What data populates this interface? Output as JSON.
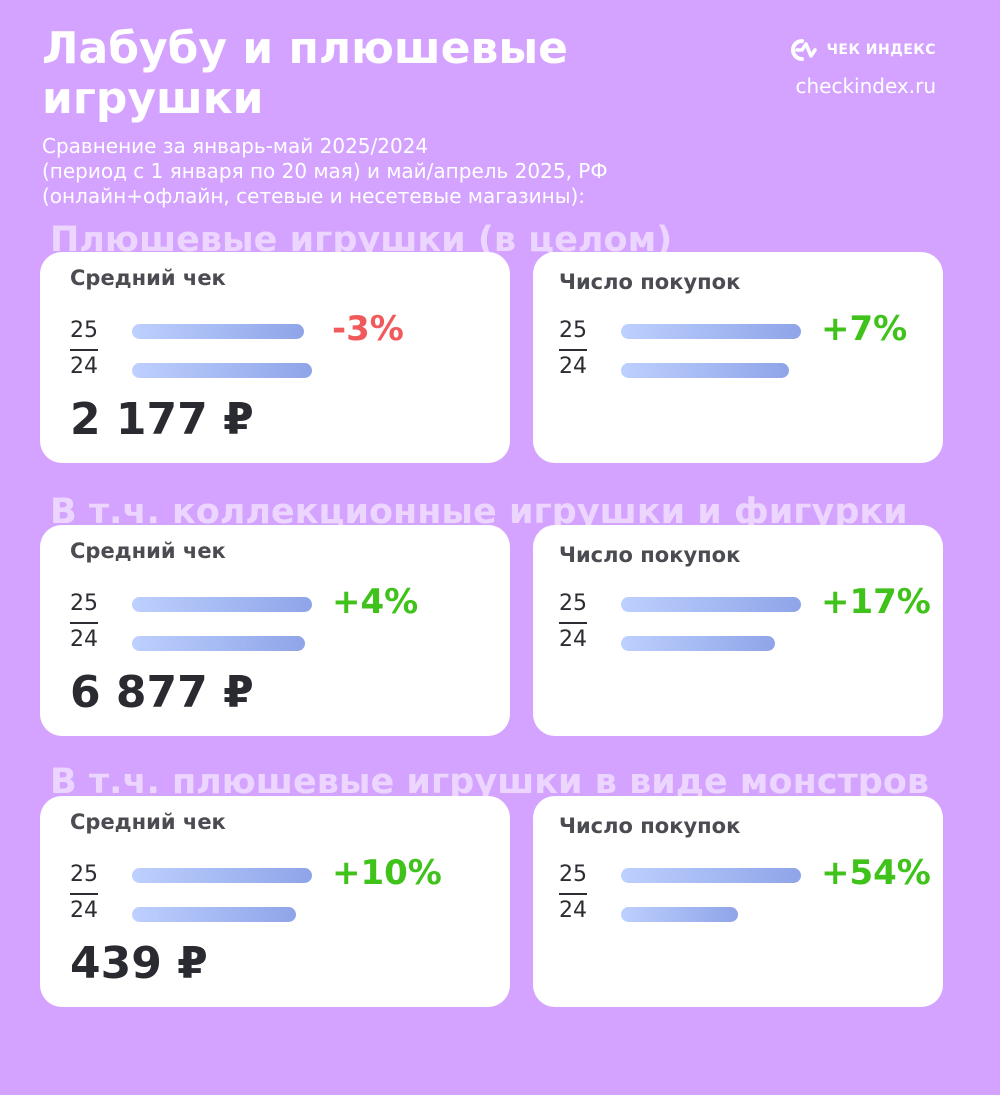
{
  "header": {
    "title": "Лабубу и плюшевые игрушки",
    "subtitle_lines": [
      "Сравнение за январь-май 2025/2024",
      "(период с 1 января по 20 мая) и май/апрель 2025, РФ",
      "(онлайн+офлайн, сетевые и несетевые магазины):"
    ]
  },
  "brand": {
    "name": "ЧЕК ИНДЕКС",
    "url": "checkindex.ru",
    "logo_icon": "checkindex-logo-icon"
  },
  "colors": {
    "background": "#d4a3ff",
    "negative": "#f05a5a",
    "positive": "#3fc21a",
    "bar_start": "#bdd0ff",
    "bar_end": "#8fa4e8"
  },
  "chart_data": [
    {
      "type": "bar",
      "title": "Плюшевые игрушки (в целом)",
      "metric": "Средний чек",
      "categories": [
        "25",
        "24"
      ],
      "values": [
        0.97,
        1.0
      ],
      "change": "-3%",
      "value_label": "2 177 ₽"
    },
    {
      "type": "bar",
      "title": "Плюшевые игрушки (в целом)",
      "metric": "Число покупок",
      "categories": [
        "25",
        "24"
      ],
      "values": [
        1.07,
        1.0
      ],
      "change": "+7%"
    },
    {
      "type": "bar",
      "title": "В т.ч. коллекционные игрушки и фигурки",
      "metric": "Средний чек",
      "categories": [
        "25",
        "24"
      ],
      "values": [
        1.04,
        1.0
      ],
      "change": "+4%",
      "value_label": "6 877 ₽"
    },
    {
      "type": "bar",
      "title": "В т.ч. коллекционные игрушки и фигурки",
      "metric": "Число покупок",
      "categories": [
        "25",
        "24"
      ],
      "values": [
        1.17,
        1.0
      ],
      "change": "+17%"
    },
    {
      "type": "bar",
      "title": "В т.ч. плюшевые игрушки в виде монстров",
      "metric": "Средний чек",
      "categories": [
        "25",
        "24"
      ],
      "values": [
        1.1,
        1.0
      ],
      "change": "+10%",
      "value_label": "439 ₽"
    },
    {
      "type": "bar",
      "title": "В т.ч. плюшевые игрушки в виде монстров",
      "metric": "Число покупок",
      "categories": [
        "25",
        "24"
      ],
      "values": [
        1.54,
        1.0
      ],
      "change": "+54%"
    }
  ]
}
